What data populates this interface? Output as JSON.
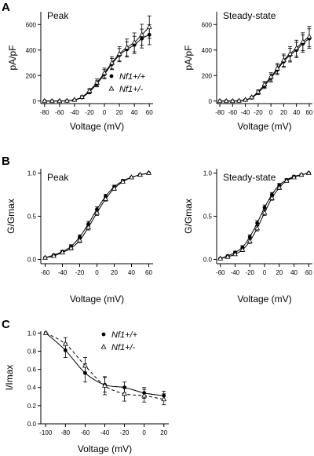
{
  "chart_data": [
    {
      "type": "scatter",
      "panel": "A",
      "title": "Peak",
      "xlabel": "Voltage (mV)",
      "ylabel": "pA/pF",
      "xlim": [
        -85,
        65
      ],
      "ylim": [
        -20,
        700
      ],
      "xticks": [
        -80,
        -60,
        -40,
        -20,
        0,
        20,
        40,
        60
      ],
      "yticks": [
        0,
        200,
        400,
        600
      ],
      "legend": {
        "placement": "right-middle",
        "entries": [
          "Nf1+/+",
          "Nf1+/-"
        ]
      },
      "series": [
        {
          "name": "Nf1+/+",
          "marker": "filled-circle",
          "x": [
            -80,
            -70,
            -60,
            -50,
            -40,
            -30,
            -20,
            -10,
            0,
            10,
            20,
            30,
            40,
            50,
            60
          ],
          "y": [
            0,
            0,
            0,
            2,
            8,
            28,
            72,
            135,
            210,
            290,
            360,
            405,
            440,
            490,
            520
          ],
          "err": [
            0,
            0,
            0,
            2,
            4,
            8,
            16,
            24,
            36,
            44,
            52,
            60,
            68,
            74,
            78
          ]
        },
        {
          "name": "Nf1+/-",
          "marker": "open-triangle",
          "x": [
            -80,
            -70,
            -60,
            -50,
            -40,
            -30,
            -20,
            -10,
            0,
            10,
            20,
            30,
            40,
            50,
            60
          ],
          "y": [
            0,
            0,
            0,
            3,
            10,
            32,
            80,
            145,
            220,
            300,
            370,
            420,
            460,
            520,
            580
          ],
          "err": [
            0,
            0,
            0,
            2,
            4,
            10,
            18,
            28,
            38,
            48,
            56,
            66,
            74,
            82,
            88
          ]
        }
      ]
    },
    {
      "type": "scatter",
      "panel": "A",
      "title": "Steady-state",
      "xlabel": "Voltage (mV)",
      "ylabel": "pA/pF",
      "xlim": [
        -85,
        65
      ],
      "ylim": [
        -20,
        700
      ],
      "xticks": [
        -80,
        -60,
        -40,
        -20,
        0,
        20,
        40,
        60
      ],
      "yticks": [
        0,
        200,
        400,
        600
      ],
      "series": [
        {
          "name": "Nf1+/+",
          "marker": "filled-circle",
          "x": [
            -80,
            -70,
            -60,
            -50,
            -40,
            -30,
            -20,
            -10,
            0,
            10,
            20,
            30,
            40,
            50,
            60
          ],
          "y": [
            0,
            0,
            0,
            2,
            8,
            25,
            65,
            120,
            180,
            245,
            310,
            360,
            400,
            450,
            490
          ],
          "err": [
            0,
            0,
            0,
            2,
            4,
            8,
            14,
            22,
            30,
            38,
            46,
            54,
            60,
            68,
            76
          ]
        },
        {
          "name": "Nf1+/-",
          "marker": "open-triangle",
          "x": [
            -80,
            -70,
            -60,
            -50,
            -40,
            -30,
            -20,
            -10,
            0,
            10,
            20,
            30,
            40,
            50,
            60
          ],
          "y": [
            0,
            0,
            0,
            3,
            10,
            30,
            72,
            130,
            190,
            255,
            320,
            370,
            415,
            465,
            505
          ],
          "err": [
            0,
            0,
            0,
            2,
            4,
            8,
            16,
            24,
            32,
            40,
            48,
            56,
            62,
            70,
            80
          ]
        }
      ]
    },
    {
      "type": "scatter",
      "panel": "B",
      "title": "Peak",
      "xlabel": "Voltage (mV)",
      "ylabel": "G/Gmax",
      "xlim": [
        -65,
        65
      ],
      "ylim": [
        -0.05,
        1.05
      ],
      "xticks": [
        -60,
        -40,
        -20,
        0,
        20,
        40,
        60
      ],
      "yticks": [
        "0.0",
        "0.5",
        "1.0"
      ],
      "series": [
        {
          "name": "Nf1+/+",
          "marker": "filled-circle",
          "x": [
            -60,
            -50,
            -40,
            -30,
            -20,
            -10,
            0,
            10,
            20,
            30,
            40,
            50,
            60
          ],
          "y": [
            0.02,
            0.05,
            0.09,
            0.15,
            0.26,
            0.41,
            0.58,
            0.73,
            0.84,
            0.91,
            0.95,
            0.98,
            1.0
          ],
          "err": [
            0.005,
            0.01,
            0.015,
            0.02,
            0.025,
            0.03,
            0.03,
            0.025,
            0.02,
            0.015,
            0.01,
            0.008,
            0.005
          ]
        },
        {
          "name": "Nf1+/-",
          "marker": "open-triangle",
          "x": [
            -60,
            -50,
            -40,
            -30,
            -20,
            -10,
            0,
            10,
            20,
            30,
            40,
            50,
            60
          ],
          "y": [
            0.02,
            0.04,
            0.08,
            0.13,
            0.22,
            0.37,
            0.54,
            0.7,
            0.82,
            0.9,
            0.95,
            0.98,
            1.0
          ],
          "err": [
            0.005,
            0.01,
            0.015,
            0.02,
            0.025,
            0.03,
            0.03,
            0.025,
            0.02,
            0.015,
            0.01,
            0.008,
            0.005
          ]
        }
      ]
    },
    {
      "type": "scatter",
      "panel": "B",
      "title": "Steady-state",
      "xlabel": "Voltage (mV)",
      "ylabel": "G/Gmax",
      "xlim": [
        -65,
        65
      ],
      "ylim": [
        -0.05,
        1.05
      ],
      "xticks": [
        -60,
        -40,
        -20,
        0,
        20,
        40,
        60
      ],
      "yticks": [
        "0.0",
        "0.5",
        "1.0"
      ],
      "series": [
        {
          "name": "Nf1+/+",
          "marker": "filled-circle",
          "x": [
            -60,
            -50,
            -40,
            -30,
            -20,
            -10,
            0,
            10,
            20,
            30,
            40,
            50,
            60
          ],
          "y": [
            0.01,
            0.04,
            0.08,
            0.14,
            0.26,
            0.42,
            0.6,
            0.75,
            0.86,
            0.92,
            0.96,
            0.98,
            1.0
          ],
          "err": [
            0.005,
            0.01,
            0.015,
            0.02,
            0.025,
            0.03,
            0.03,
            0.025,
            0.02,
            0.015,
            0.01,
            0.008,
            0.005
          ]
        },
        {
          "name": "Nf1+/-",
          "marker": "open-triangle",
          "x": [
            -60,
            -50,
            -40,
            -30,
            -20,
            -10,
            0,
            10,
            20,
            30,
            40,
            50,
            60
          ],
          "y": [
            0.01,
            0.03,
            0.06,
            0.11,
            0.21,
            0.36,
            0.54,
            0.71,
            0.83,
            0.91,
            0.95,
            0.98,
            1.0
          ],
          "err": [
            0.005,
            0.01,
            0.015,
            0.02,
            0.025,
            0.03,
            0.03,
            0.025,
            0.02,
            0.015,
            0.01,
            0.008,
            0.005
          ]
        }
      ]
    },
    {
      "type": "scatter",
      "panel": "C",
      "title": "",
      "xlabel": "Voltage (mV)",
      "ylabel": "I/Imax",
      "xlim": [
        -105,
        25
      ],
      "ylim": [
        0.0,
        1.02
      ],
      "xticks": [
        -100,
        -80,
        -60,
        -40,
        -20,
        0,
        20
      ],
      "yticks": [
        "0.0",
        "0.2",
        "0.4",
        "0.6",
        "0.8",
        "1.0"
      ],
      "legend": {
        "placement": "top-right",
        "entries": [
          "Nf1+/+",
          "Nf1+/-"
        ]
      },
      "series": [
        {
          "name": "Nf1+/+",
          "marker": "filled-circle",
          "x": [
            -100,
            -80,
            -60,
            -40,
            -20,
            0,
            20
          ],
          "y": [
            1.0,
            0.81,
            0.56,
            0.43,
            0.4,
            0.34,
            0.31
          ],
          "err": [
            0.0,
            0.08,
            0.1,
            0.08,
            0.06,
            0.06,
            0.05
          ]
        },
        {
          "name": "Nf1+/-",
          "marker": "open-triangle",
          "x": [
            -100,
            -80,
            -60,
            -40,
            -20,
            0,
            20
          ],
          "y": [
            1.0,
            0.88,
            0.64,
            0.42,
            0.33,
            0.31,
            0.27
          ],
          "err": [
            0.0,
            0.07,
            0.09,
            0.1,
            0.08,
            0.07,
            0.06
          ]
        }
      ]
    }
  ],
  "panel_letters": [
    "A",
    "B",
    "C"
  ]
}
